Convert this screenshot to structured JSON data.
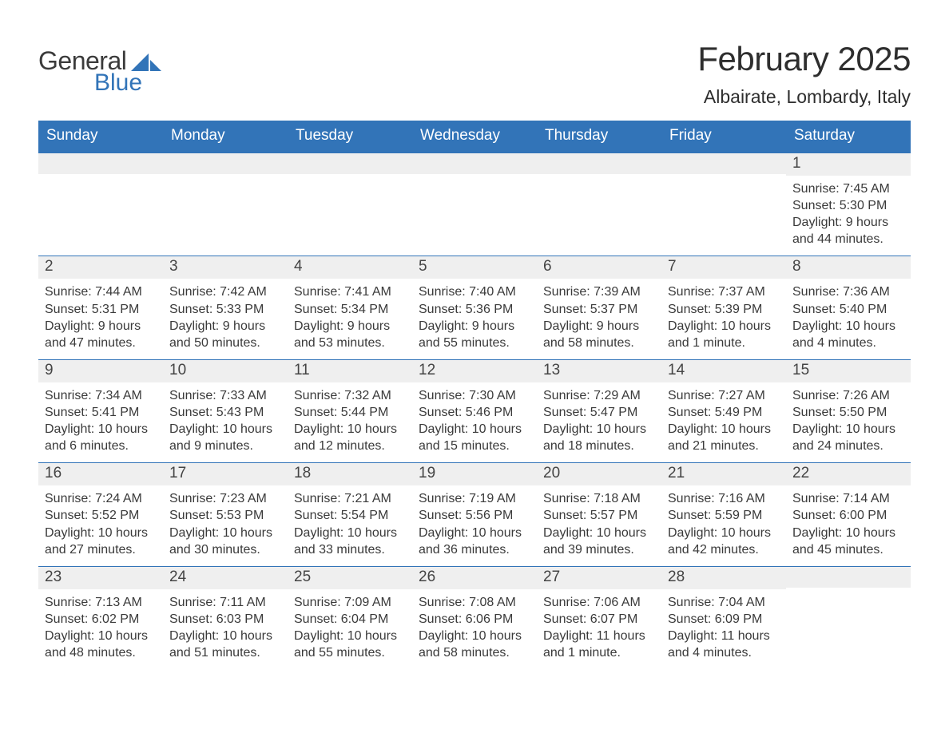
{
  "brand": {
    "word1": "General",
    "word2": "Blue",
    "sail_color": "#3274b8",
    "text_color": "#3b3b3b"
  },
  "title": "February 2025",
  "location": "Albairate, Lombardy, Italy",
  "colors": {
    "header_bg": "#3274b8",
    "header_text": "#ffffff",
    "daynum_bg": "#efefef",
    "week_border": "#3274b8",
    "body_text": "#3a3a3a",
    "page_bg": "#ffffff"
  },
  "layout": {
    "columns": 7,
    "weeks": 5,
    "first_day_column": 6
  },
  "weekdays": [
    "Sunday",
    "Monday",
    "Tuesday",
    "Wednesday",
    "Thursday",
    "Friday",
    "Saturday"
  ],
  "days": [
    {
      "n": 1,
      "sunrise": "7:45 AM",
      "sunset": "5:30 PM",
      "daylight": "9 hours and 44 minutes."
    },
    {
      "n": 2,
      "sunrise": "7:44 AM",
      "sunset": "5:31 PM",
      "daylight": "9 hours and 47 minutes."
    },
    {
      "n": 3,
      "sunrise": "7:42 AM",
      "sunset": "5:33 PM",
      "daylight": "9 hours and 50 minutes."
    },
    {
      "n": 4,
      "sunrise": "7:41 AM",
      "sunset": "5:34 PM",
      "daylight": "9 hours and 53 minutes."
    },
    {
      "n": 5,
      "sunrise": "7:40 AM",
      "sunset": "5:36 PM",
      "daylight": "9 hours and 55 minutes."
    },
    {
      "n": 6,
      "sunrise": "7:39 AM",
      "sunset": "5:37 PM",
      "daylight": "9 hours and 58 minutes."
    },
    {
      "n": 7,
      "sunrise": "7:37 AM",
      "sunset": "5:39 PM",
      "daylight": "10 hours and 1 minute."
    },
    {
      "n": 8,
      "sunrise": "7:36 AM",
      "sunset": "5:40 PM",
      "daylight": "10 hours and 4 minutes."
    },
    {
      "n": 9,
      "sunrise": "7:34 AM",
      "sunset": "5:41 PM",
      "daylight": "10 hours and 6 minutes."
    },
    {
      "n": 10,
      "sunrise": "7:33 AM",
      "sunset": "5:43 PM",
      "daylight": "10 hours and 9 minutes."
    },
    {
      "n": 11,
      "sunrise": "7:32 AM",
      "sunset": "5:44 PM",
      "daylight": "10 hours and 12 minutes."
    },
    {
      "n": 12,
      "sunrise": "7:30 AM",
      "sunset": "5:46 PM",
      "daylight": "10 hours and 15 minutes."
    },
    {
      "n": 13,
      "sunrise": "7:29 AM",
      "sunset": "5:47 PM",
      "daylight": "10 hours and 18 minutes."
    },
    {
      "n": 14,
      "sunrise": "7:27 AM",
      "sunset": "5:49 PM",
      "daylight": "10 hours and 21 minutes."
    },
    {
      "n": 15,
      "sunrise": "7:26 AM",
      "sunset": "5:50 PM",
      "daylight": "10 hours and 24 minutes."
    },
    {
      "n": 16,
      "sunrise": "7:24 AM",
      "sunset": "5:52 PM",
      "daylight": "10 hours and 27 minutes."
    },
    {
      "n": 17,
      "sunrise": "7:23 AM",
      "sunset": "5:53 PM",
      "daylight": "10 hours and 30 minutes."
    },
    {
      "n": 18,
      "sunrise": "7:21 AM",
      "sunset": "5:54 PM",
      "daylight": "10 hours and 33 minutes."
    },
    {
      "n": 19,
      "sunrise": "7:19 AM",
      "sunset": "5:56 PM",
      "daylight": "10 hours and 36 minutes."
    },
    {
      "n": 20,
      "sunrise": "7:18 AM",
      "sunset": "5:57 PM",
      "daylight": "10 hours and 39 minutes."
    },
    {
      "n": 21,
      "sunrise": "7:16 AM",
      "sunset": "5:59 PM",
      "daylight": "10 hours and 42 minutes."
    },
    {
      "n": 22,
      "sunrise": "7:14 AM",
      "sunset": "6:00 PM",
      "daylight": "10 hours and 45 minutes."
    },
    {
      "n": 23,
      "sunrise": "7:13 AM",
      "sunset": "6:02 PM",
      "daylight": "10 hours and 48 minutes."
    },
    {
      "n": 24,
      "sunrise": "7:11 AM",
      "sunset": "6:03 PM",
      "daylight": "10 hours and 51 minutes."
    },
    {
      "n": 25,
      "sunrise": "7:09 AM",
      "sunset": "6:04 PM",
      "daylight": "10 hours and 55 minutes."
    },
    {
      "n": 26,
      "sunrise": "7:08 AM",
      "sunset": "6:06 PM",
      "daylight": "10 hours and 58 minutes."
    },
    {
      "n": 27,
      "sunrise": "7:06 AM",
      "sunset": "6:07 PM",
      "daylight": "11 hours and 1 minute."
    },
    {
      "n": 28,
      "sunrise": "7:04 AM",
      "sunset": "6:09 PM",
      "daylight": "11 hours and 4 minutes."
    }
  ],
  "labels": {
    "sunrise": "Sunrise: ",
    "sunset": "Sunset: ",
    "daylight": "Daylight: "
  }
}
